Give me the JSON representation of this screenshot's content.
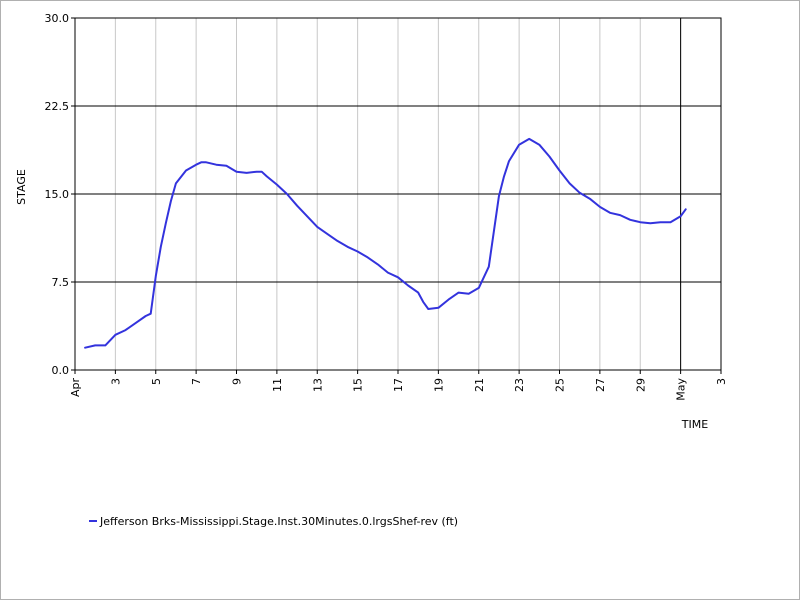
{
  "chart_data": {
    "type": "line",
    "xlabel": "TIME",
    "ylabel": "STAGE",
    "ylim": [
      0,
      30
    ],
    "xlim": [
      "2019-04-01",
      "2019-05-03"
    ],
    "grid": "on",
    "legend_position": "bottom-left",
    "y_ticks": [
      {
        "value": 0,
        "label": "0.0"
      },
      {
        "value": 7.5,
        "label": "7.5"
      },
      {
        "value": 15,
        "label": "15.0"
      },
      {
        "value": 22.5,
        "label": "22.5"
      },
      {
        "value": 30,
        "label": "30.0"
      }
    ],
    "x_ticks": [
      {
        "date": "2019-04-01",
        "label": "Apr"
      },
      {
        "date": "2019-04-03",
        "label": "3"
      },
      {
        "date": "2019-04-05",
        "label": "5"
      },
      {
        "date": "2019-04-07",
        "label": "7"
      },
      {
        "date": "2019-04-09",
        "label": "9"
      },
      {
        "date": "2019-04-11",
        "label": "11"
      },
      {
        "date": "2019-04-13",
        "label": "13"
      },
      {
        "date": "2019-04-15",
        "label": "15"
      },
      {
        "date": "2019-04-17",
        "label": "17"
      },
      {
        "date": "2019-04-19",
        "label": "19"
      },
      {
        "date": "2019-04-21",
        "label": "21"
      },
      {
        "date": "2019-04-23",
        "label": "23"
      },
      {
        "date": "2019-04-25",
        "label": "25"
      },
      {
        "date": "2019-04-27",
        "label": "27"
      },
      {
        "date": "2019-04-29",
        "label": "29"
      },
      {
        "date": "2019-05-01",
        "label": "May"
      },
      {
        "date": "2019-05-03",
        "label": "3"
      }
    ],
    "marker_line": {
      "date": "2019-05-01"
    },
    "series": [
      {
        "name": "Jefferson Brks-Mississippi.Stage.Inst.30Minutes.0.lrgsShef-rev (ft)",
        "color": "#3333dd",
        "x": [
          "2019-04-01T12:00",
          "2019-04-02T00:00",
          "2019-04-02T12:00",
          "2019-04-03T00:00",
          "2019-04-03T12:00",
          "2019-04-04T00:00",
          "2019-04-04T12:00",
          "2019-04-04T18:00",
          "2019-04-05T00:00",
          "2019-04-05T06:00",
          "2019-04-05T12:00",
          "2019-04-05T18:00",
          "2019-04-06T00:00",
          "2019-04-06T12:00",
          "2019-04-07T00:00",
          "2019-04-07T06:00",
          "2019-04-07T12:00",
          "2019-04-08T00:00",
          "2019-04-08T12:00",
          "2019-04-09T00:00",
          "2019-04-09T12:00",
          "2019-04-10T00:00",
          "2019-04-10T06:00",
          "2019-04-10T12:00",
          "2019-04-11T00:00",
          "2019-04-11T12:00",
          "2019-04-12T00:00",
          "2019-04-12T12:00",
          "2019-04-13T00:00",
          "2019-04-13T12:00",
          "2019-04-14T00:00",
          "2019-04-14T12:00",
          "2019-04-15T00:00",
          "2019-04-15T12:00",
          "2019-04-16T00:00",
          "2019-04-16T12:00",
          "2019-04-17T00:00",
          "2019-04-17T12:00",
          "2019-04-18T00:00",
          "2019-04-18T06:00",
          "2019-04-18T12:00",
          "2019-04-19T00:00",
          "2019-04-19T12:00",
          "2019-04-20T00:00",
          "2019-04-20T12:00",
          "2019-04-21T00:00",
          "2019-04-21T12:00",
          "2019-04-22T00:00",
          "2019-04-22T06:00",
          "2019-04-22T12:00",
          "2019-04-23T00:00",
          "2019-04-23T12:00",
          "2019-04-24T00:00",
          "2019-04-24T12:00",
          "2019-04-25T00:00",
          "2019-04-25T12:00",
          "2019-04-26T00:00",
          "2019-04-26T12:00",
          "2019-04-27T00:00",
          "2019-04-27T12:00",
          "2019-04-28T00:00",
          "2019-04-28T12:00",
          "2019-04-29T00:00",
          "2019-04-29T12:00",
          "2019-04-30T00:00",
          "2019-04-30T12:00",
          "2019-05-01T00:00",
          "2019-05-01T06:00"
        ],
        "y": [
          1.9,
          2.1,
          2.1,
          3.0,
          3.4,
          4.0,
          4.6,
          4.8,
          8.0,
          10.5,
          12.5,
          14.4,
          15.9,
          17.0,
          17.5,
          17.7,
          17.7,
          17.5,
          17.4,
          16.9,
          16.8,
          16.9,
          16.9,
          16.5,
          15.8,
          15.0,
          14.0,
          13.1,
          12.2,
          11.6,
          11.0,
          10.5,
          10.1,
          9.6,
          9.0,
          8.3,
          7.9,
          7.2,
          6.6,
          5.8,
          5.2,
          5.3,
          6.0,
          6.6,
          6.5,
          7.0,
          8.8,
          14.8,
          16.5,
          17.8,
          19.2,
          19.7,
          19.2,
          18.2,
          17.0,
          15.9,
          15.1,
          14.6,
          13.9,
          13.4,
          13.2,
          12.8,
          12.6,
          12.5,
          12.6,
          12.6,
          13.1,
          13.7
        ]
      }
    ]
  }
}
